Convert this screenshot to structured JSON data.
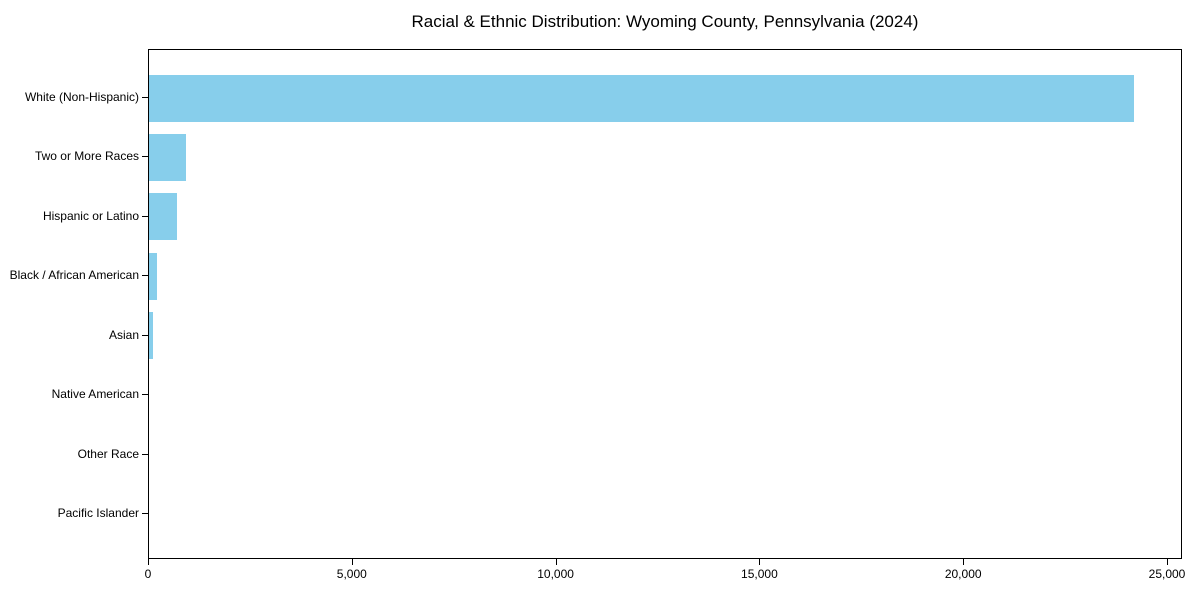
{
  "chart_data": {
    "type": "bar",
    "orientation": "horizontal",
    "title": "Racial & Ethnic Distribution: Wyoming County, Pennsylvania (2024)",
    "xlabel": "",
    "ylabel": "",
    "categories": [
      "White (Non-Hispanic)",
      "Two or More Races",
      "Hispanic or Latino",
      "Black / African American",
      "Asian",
      "Native American",
      "Other Race",
      "Pacific Islander"
    ],
    "values": [
      24160,
      910,
      690,
      195,
      100,
      0,
      0,
      0
    ],
    "xlim": [
      0,
      25368
    ],
    "x_ticks": [
      0,
      5000,
      10000,
      15000,
      20000,
      25000
    ],
    "x_tick_labels": [
      "0",
      "5,000",
      "10,000",
      "15,000",
      "20,000",
      "25,000"
    ],
    "bar_color": "#87CEEB",
    "grid": false,
    "legend": "none",
    "frame": "full-box"
  },
  "colors": {
    "bar": "#87CEEB",
    "axis": "#000000",
    "text": "#000000",
    "background": "#ffffff"
  }
}
